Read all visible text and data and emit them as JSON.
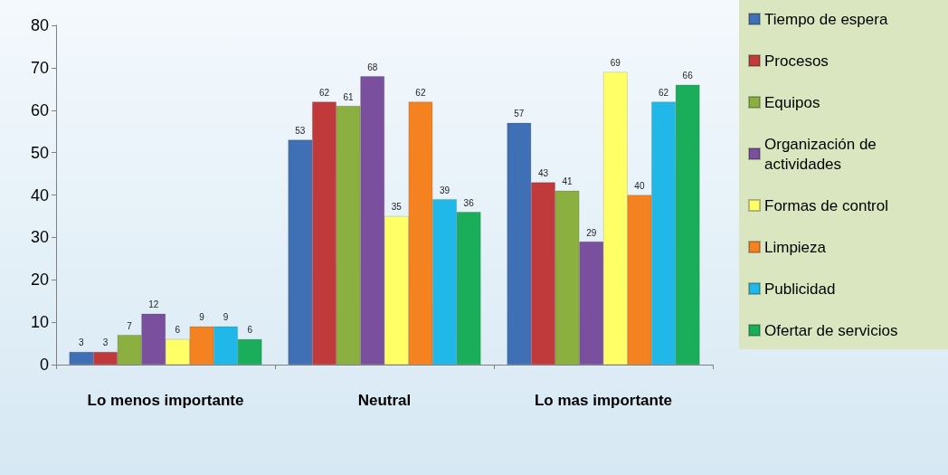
{
  "chart_data": {
    "type": "bar",
    "categories": [
      "Lo menos importante",
      "Neutral",
      "Lo mas importante"
    ],
    "series": [
      {
        "name": "Tiempo de espera",
        "color": "#3f6fb5",
        "values": [
          3,
          53,
          57
        ]
      },
      {
        "name": "Procesos",
        "color": "#c0393b",
        "values": [
          3,
          62,
          43
        ]
      },
      {
        "name": "Equipos",
        "color": "#8cb040",
        "values": [
          7,
          61,
          41
        ]
      },
      {
        "name": "Organización de actividades",
        "color": "#7a4f9e",
        "values": [
          12,
          68,
          29
        ]
      },
      {
        "name": "Formas de control",
        "color": "#ffff66",
        "values": [
          6,
          35,
          69
        ]
      },
      {
        "name": "Limpieza",
        "color": "#f58220",
        "values": [
          9,
          62,
          40
        ]
      },
      {
        "name": "Publicidad",
        "color": "#1fb8e8",
        "values": [
          9,
          39,
          62
        ]
      },
      {
        "name": "Ofertar de servicios",
        "color": "#1aae5a",
        "values": [
          6,
          36,
          66
        ]
      }
    ],
    "ylim": [
      0,
      80
    ],
    "yticks": [
      0,
      10,
      20,
      30,
      40,
      50,
      60,
      70,
      80
    ],
    "grid": false,
    "legend": "right",
    "data_labels": true
  }
}
